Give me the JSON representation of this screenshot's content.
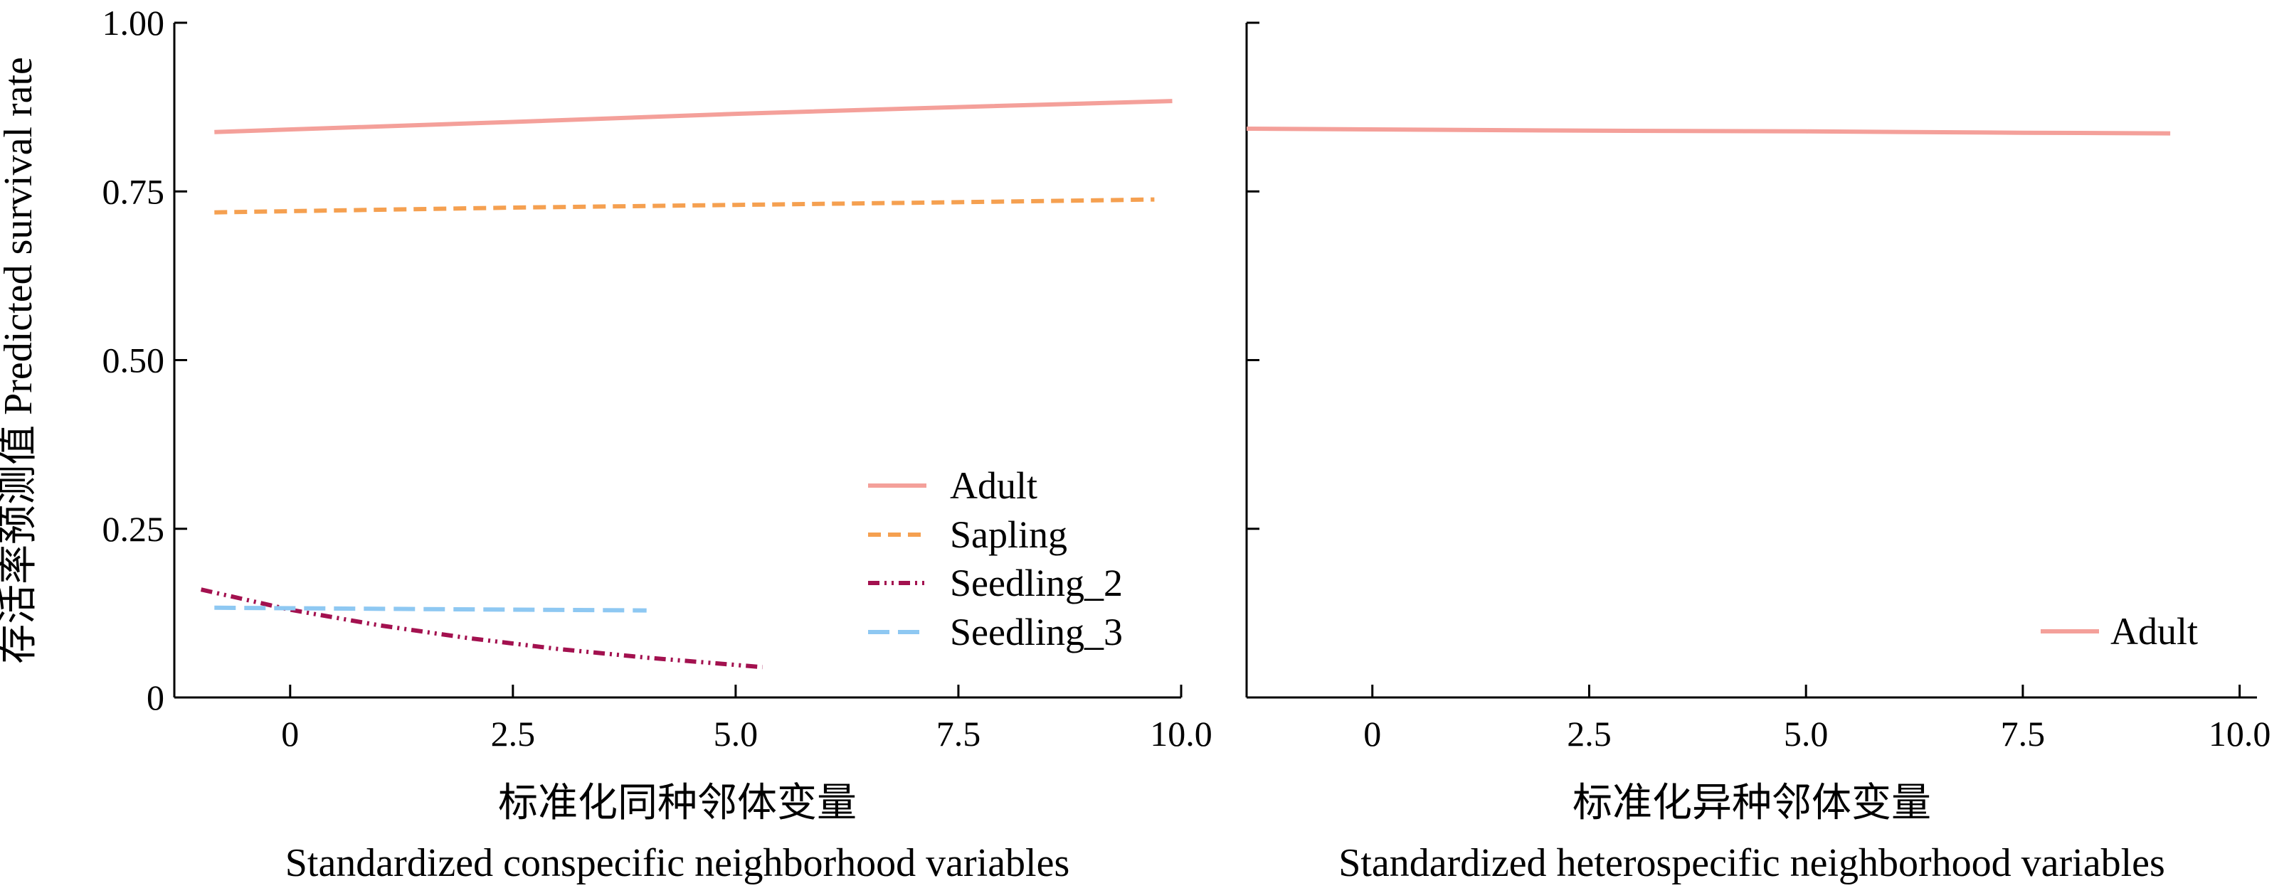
{
  "figure": {
    "ylabel": "存活率预测值 Predicted survival rate",
    "ytick_labels": [
      "0",
      "0.25",
      "0.50",
      "0.75",
      "1.00"
    ]
  },
  "chart_data": [
    {
      "type": "line",
      "xlabel_cn": "标准化同种邻体变量",
      "xlabel_en": "Standardized conspecific neighborhood variables",
      "ylabel": "存活率预测值 Predicted survival rate",
      "xlim": [
        -1.3,
        10.0
      ],
      "ylim": [
        0,
        1.0
      ],
      "xticks": [
        0,
        2.5,
        5.0,
        7.5,
        10.0
      ],
      "xtick_labels": [
        "0",
        "2.5",
        "5.0",
        "7.5",
        "10.0"
      ],
      "yticks": [
        0,
        0.25,
        0.5,
        0.75,
        1.0
      ],
      "ytick_labels": [
        "0",
        "0.25",
        "0.50",
        "0.75",
        "1.00"
      ],
      "legend_position": "bottom-right",
      "series": [
        {
          "name": "Adult",
          "color": "#f4a09a",
          "dash": "solid",
          "x": [
            -0.85,
            2.5,
            5.0,
            7.5,
            9.9
          ],
          "y": [
            0.838,
            0.853,
            0.865,
            0.875,
            0.884
          ]
        },
        {
          "name": "Sapling",
          "color": "#f5a050",
          "dash": "dashed",
          "x": [
            -0.85,
            2.5,
            5.0,
            7.5,
            9.7
          ],
          "y": [
            0.719,
            0.726,
            0.73,
            0.734,
            0.738
          ]
        },
        {
          "name": "Seedling_2",
          "color": "#a3114f",
          "dash": "dashdotdot",
          "x": [
            -1.0,
            0.0,
            1.0,
            2.0,
            3.0,
            4.0,
            5.3
          ],
          "y": [
            0.16,
            0.13,
            0.107,
            0.088,
            0.072,
            0.059,
            0.045
          ]
        },
        {
          "name": "Seedling_3",
          "color": "#8ec8f2",
          "dash": "longdash",
          "x": [
            -0.85,
            1.5,
            4.0
          ],
          "y": [
            0.133,
            0.131,
            0.129
          ]
        }
      ]
    },
    {
      "type": "line",
      "xlabel_cn": "标准化异种邻体变量",
      "xlabel_en": "Standardized heterospecific neighborhood variables",
      "xlim": [
        -1.45,
        10.2
      ],
      "ylim": [
        0,
        1.0
      ],
      "xticks": [
        0,
        2.5,
        5.0,
        7.5,
        10.0
      ],
      "xtick_labels": [
        "0",
        "2.5",
        "5.0",
        "7.5",
        "10.0"
      ],
      "yticks": [
        0,
        0.25,
        0.5,
        0.75,
        1.0
      ],
      "legend_position": "bottom-right",
      "series": [
        {
          "name": "Adult",
          "color": "#f4a09a",
          "dash": "solid",
          "x": [
            -1.45,
            2.5,
            5.0,
            7.5,
            9.2
          ],
          "y": [
            0.843,
            0.84,
            0.839,
            0.837,
            0.836
          ]
        }
      ]
    }
  ]
}
